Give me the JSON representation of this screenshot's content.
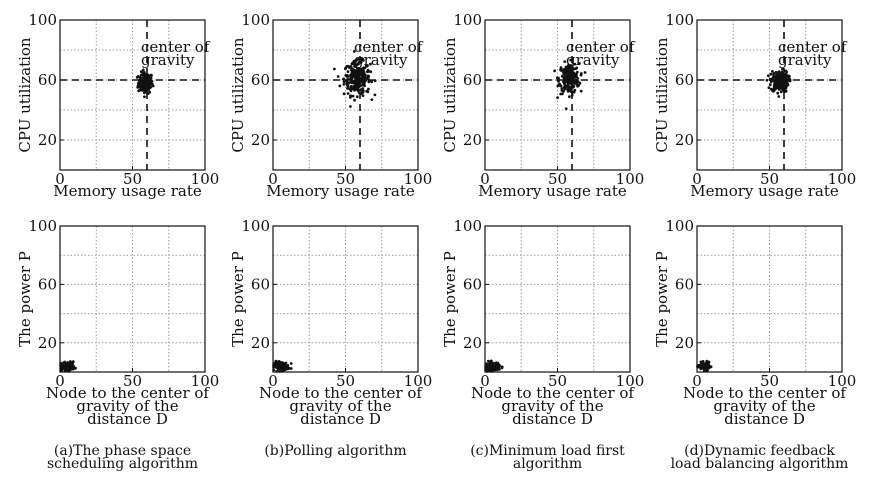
{
  "chart_data": [
    {
      "id": "a-top",
      "type": "scatter",
      "xlabel": "Memory usage rate",
      "ylabel": "CPU utilization",
      "xlim": [
        0,
        100
      ],
      "ylim": [
        0,
        100
      ],
      "xticks": [
        "0",
        "50",
        "100"
      ],
      "yticks": [
        "20",
        "60",
        "100"
      ],
      "dashed_lines": {
        "x": 60,
        "y": 60
      },
      "annotation": [
        "center of",
        "gravity"
      ],
      "cluster": {
        "cx": 59,
        "cy": 58,
        "sx": 2.5,
        "sy": 3.5,
        "n": 160
      }
    },
    {
      "id": "b-top",
      "type": "scatter",
      "xlabel": "Memory usage rate",
      "ylabel": "CPU utilization",
      "xlim": [
        0,
        100
      ],
      "ylim": [
        0,
        100
      ],
      "xticks": [
        "0",
        "50",
        "100"
      ],
      "yticks": [
        "20",
        "60",
        "100"
      ],
      "dashed_lines": {
        "x": 60,
        "y": 60
      },
      "annotation": [
        "center of",
        "gravity"
      ],
      "cluster": {
        "cx": 58,
        "cy": 61,
        "sx": 4.5,
        "sy": 5.5,
        "n": 260
      }
    },
    {
      "id": "c-top",
      "type": "scatter",
      "xlabel": "Memory usage rate",
      "ylabel": "CPU utilization",
      "xlim": [
        0,
        100
      ],
      "ylim": [
        0,
        100
      ],
      "xticks": [
        "0",
        "50",
        "100"
      ],
      "yticks": [
        "20",
        "60",
        "100"
      ],
      "dashed_lines": {
        "x": 60,
        "y": 60
      },
      "annotation": [
        "center of",
        "gravity"
      ],
      "cluster": {
        "cx": 58,
        "cy": 61,
        "sx": 3.5,
        "sy": 5,
        "n": 230
      }
    },
    {
      "id": "d-top",
      "type": "scatter",
      "xlabel": "Memory usage rate",
      "ylabel": "CPU utilization",
      "xlim": [
        0,
        100
      ],
      "ylim": [
        0,
        100
      ],
      "xticks": [
        "0",
        "50",
        "100"
      ],
      "yticks": [
        "20",
        "60",
        "100"
      ],
      "dashed_lines": {
        "x": 60,
        "y": 60
      },
      "annotation": [
        "center of",
        "gravity"
      ],
      "cluster": {
        "cx": 57,
        "cy": 59,
        "sx": 3,
        "sy": 3.5,
        "n": 200
      }
    },
    {
      "id": "a-bottom",
      "type": "scatter",
      "xlabel": [
        "Node to the center of",
        "gravity of the",
        "distance D"
      ],
      "ylabel": "The power P",
      "xlim": [
        0,
        100
      ],
      "ylim": [
        0,
        100
      ],
      "xticks": [
        "0",
        "50",
        "100"
      ],
      "yticks": [
        "20",
        "60",
        "100"
      ],
      "cluster": {
        "cx": 5,
        "cy": 4,
        "sx": 2.5,
        "sy": 1.5,
        "n": 120
      }
    },
    {
      "id": "b-bottom",
      "type": "scatter",
      "xlabel": [
        "Node to the center of",
        "gravity of the",
        "distance D"
      ],
      "ylabel": "The power P",
      "xlim": [
        0,
        100
      ],
      "ylim": [
        0,
        100
      ],
      "xticks": [
        "0",
        "50",
        "100"
      ],
      "yticks": [
        "20",
        "60",
        "100"
      ],
      "cluster": {
        "cx": 6,
        "cy": 4,
        "sx": 2.5,
        "sy": 1.5,
        "n": 120
      }
    },
    {
      "id": "c-bottom",
      "type": "scatter",
      "xlabel": [
        "Node to the center of",
        "gravity of the",
        "distance D"
      ],
      "ylabel": "The power P",
      "xlim": [
        0,
        100
      ],
      "ylim": [
        0,
        100
      ],
      "xticks": [
        "0",
        "50",
        "100"
      ],
      "yticks": [
        "20",
        "60",
        "100"
      ],
      "cluster": {
        "cx": 5,
        "cy": 4,
        "sx": 2.5,
        "sy": 1.5,
        "n": 120
      }
    },
    {
      "id": "d-bottom",
      "type": "scatter",
      "xlabel": [
        "Node to the center of",
        "gravity of the",
        "distance D"
      ],
      "ylabel": "The power P",
      "xlim": [
        0,
        100
      ],
      "ylim": [
        0,
        100
      ],
      "xticks": [
        "0",
        "50",
        "100"
      ],
      "yticks": [
        "20",
        "60",
        "100"
      ],
      "cluster": {
        "cx": 5,
        "cy": 4,
        "sx": 2,
        "sy": 1.2,
        "n": 90
      }
    }
  ],
  "captions": [
    [
      "(a)The phase space",
      "scheduling algorithm"
    ],
    [
      "(b)Polling algorithm"
    ],
    [
      "(c)Minimum load first",
      "algorithm"
    ],
    [
      "(d)Dynamic feedback",
      "load balancing algorithm"
    ]
  ],
  "point_color": "#111111",
  "grid_color": "#9a9a9a"
}
